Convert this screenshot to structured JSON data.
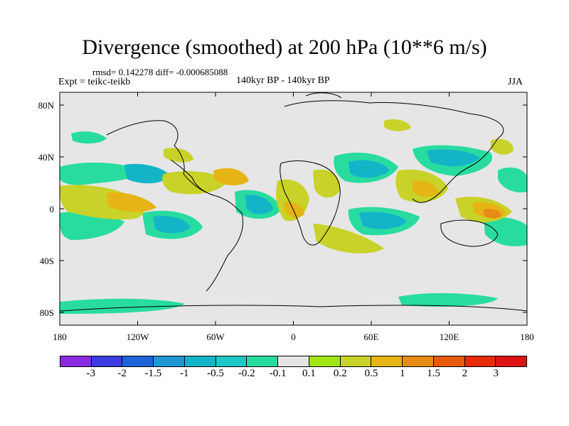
{
  "title": "Divergence (smoothed) at 200 hPa (10**6 m/s)",
  "stats": "rmsd= 0.142278 diff= -0.000685088",
  "expt": "Expt = teikc-teikb",
  "period": "140kyr BP - 140kyr BP",
  "season": "JJA",
  "lat_labels": [
    "80N",
    "40N",
    "0",
    "40S",
    "80S"
  ],
  "lon_labels": [
    "180",
    "120W",
    "60W",
    "0",
    "60E",
    "120E",
    "180"
  ],
  "colorbar": {
    "labels": [
      "-3",
      "-2",
      "-1.5",
      "-1",
      "-0.5",
      "-0.2",
      "-0.1",
      "0.1",
      "0.2",
      "0.5",
      "1",
      "1.5",
      "2",
      "3"
    ],
    "colors": [
      "#8a2be2",
      "#3c3ce0",
      "#1e64d8",
      "#1e96d2",
      "#14b4c8",
      "#1ec8c8",
      "#28dca0",
      "#e6e6e6",
      "#a0e614",
      "#c8d228",
      "#e6b414",
      "#e68c14",
      "#e65a0a",
      "#e62a0a",
      "#dc1414"
    ]
  },
  "palette": {
    "background": "#e6e6e6",
    "coast": "#000000"
  }
}
